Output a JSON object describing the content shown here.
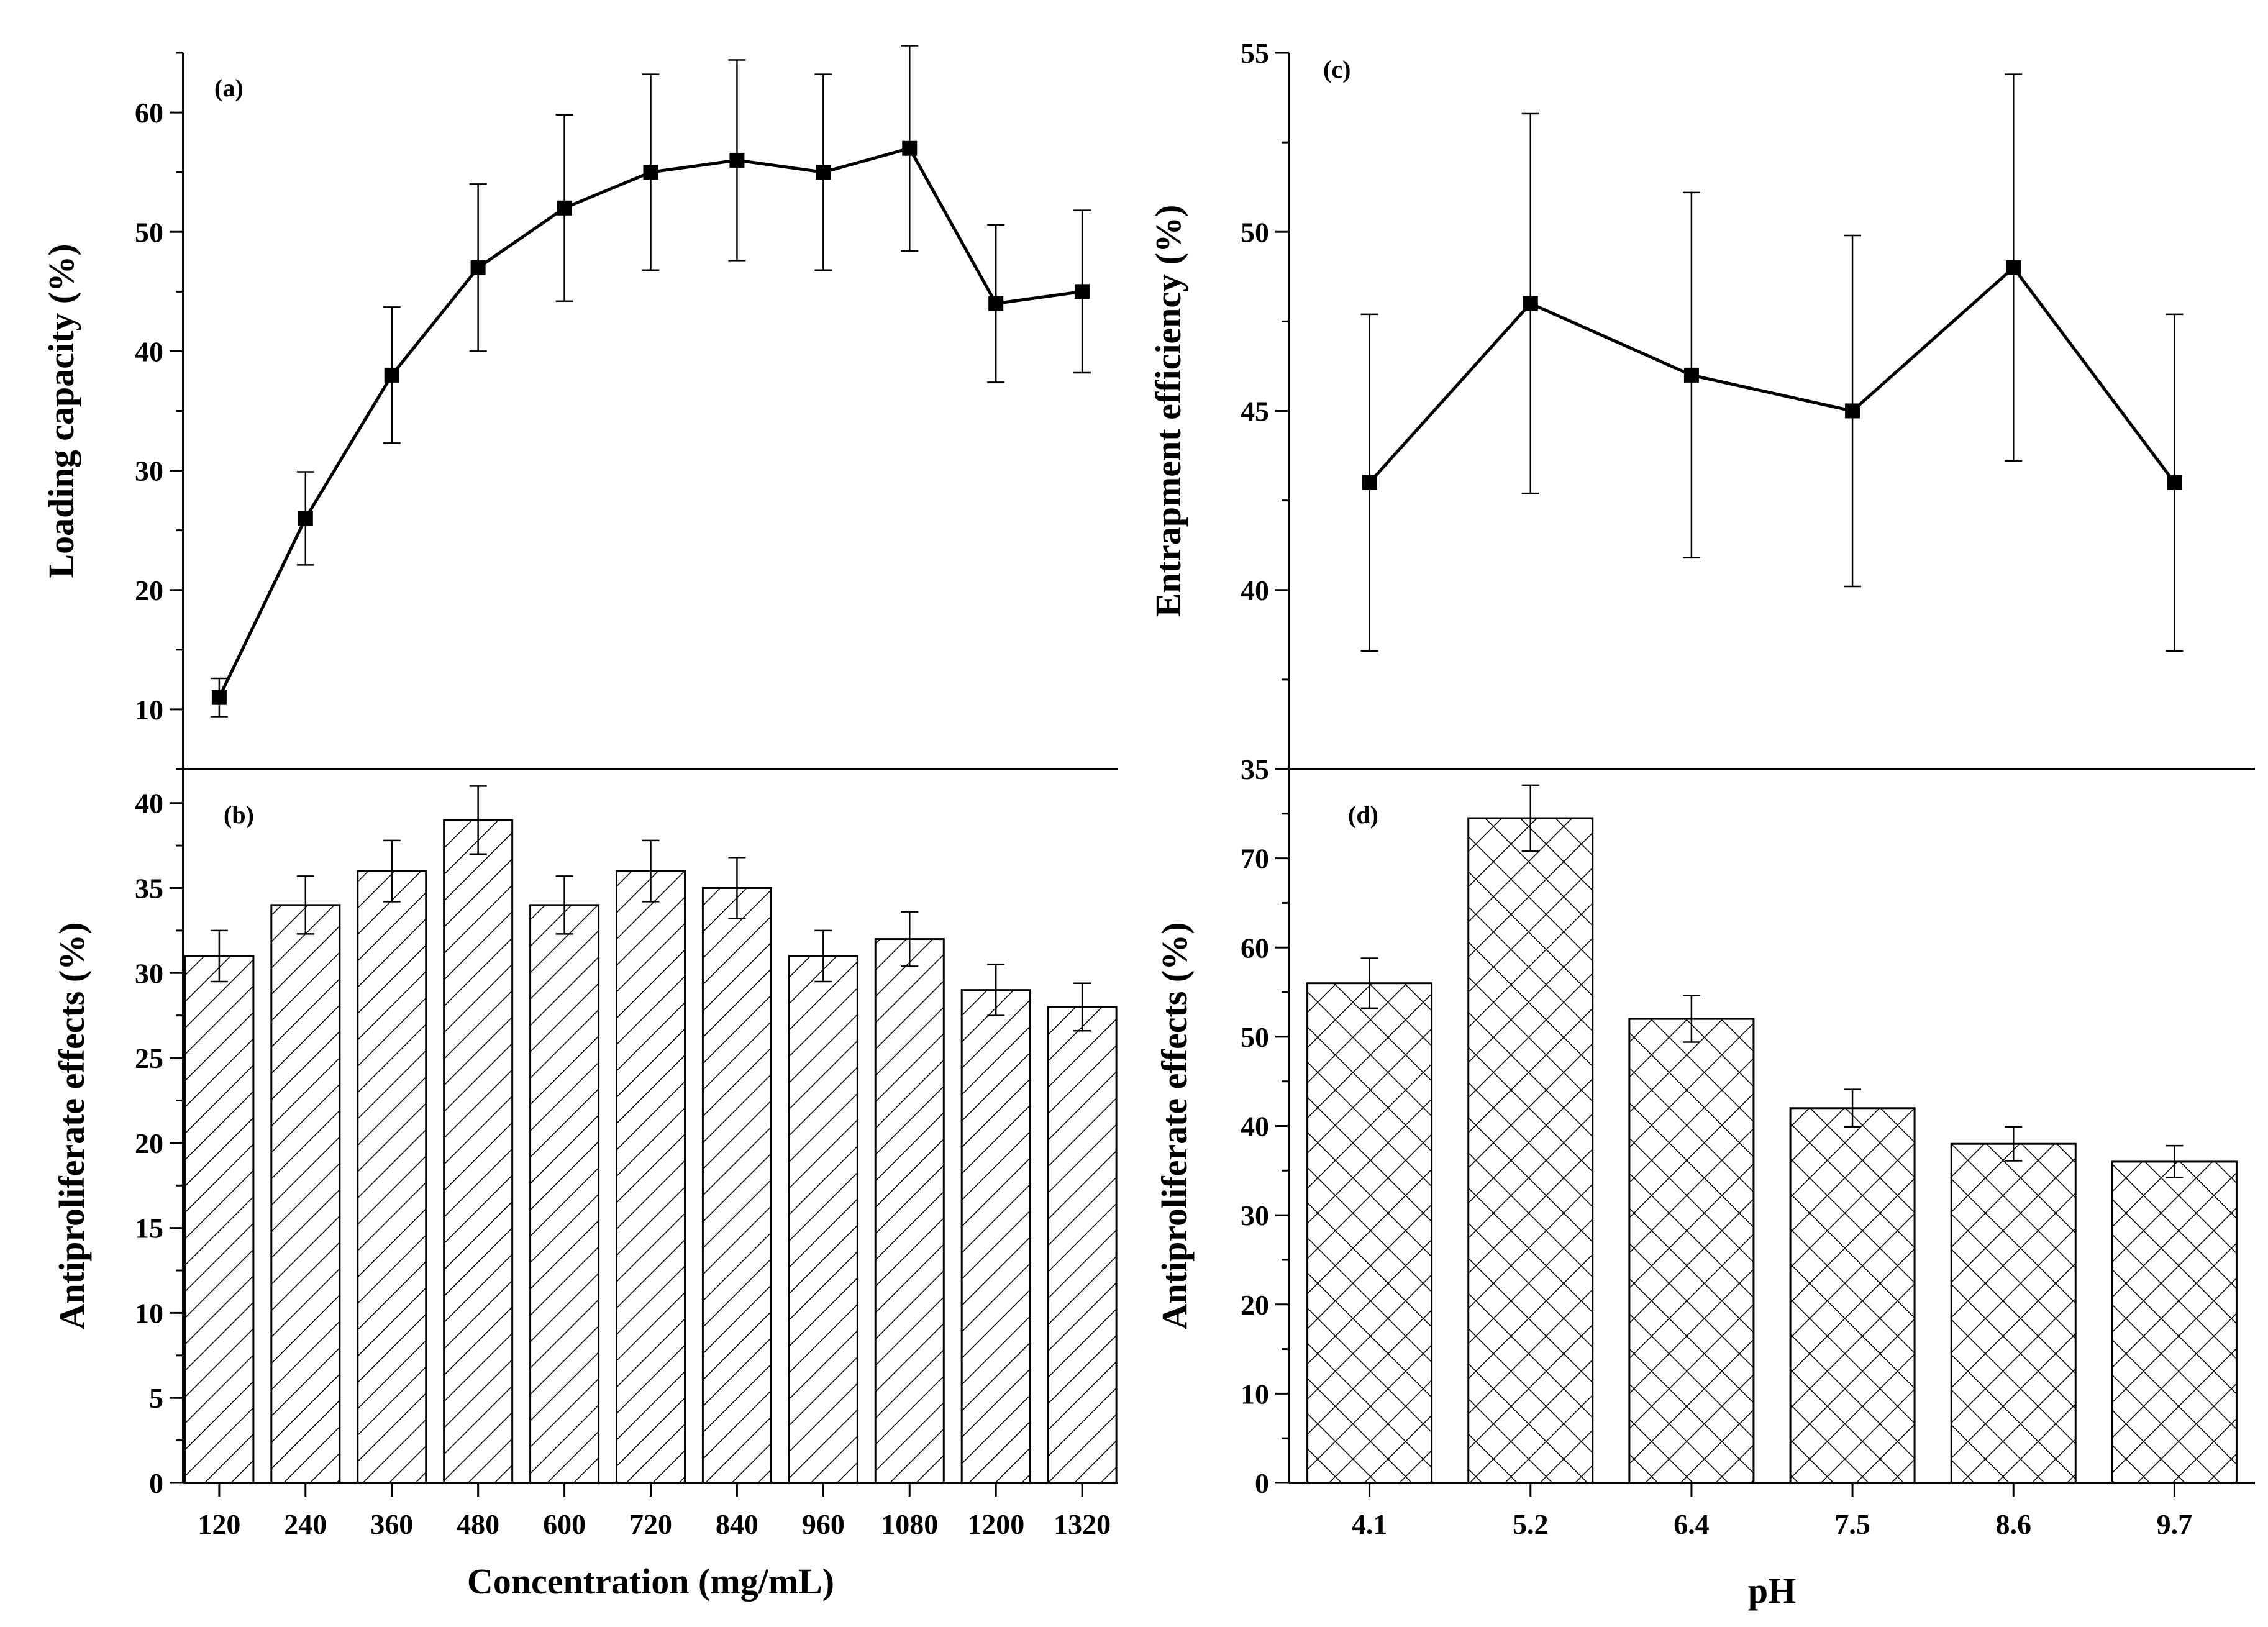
{
  "chart_data": [
    {
      "id": "a",
      "panel_label": "(a)",
      "type": "line",
      "title": "",
      "xlabel": "",
      "ylabel": "Loading capacity (%)",
      "ylim": [
        5,
        65
      ],
      "yticks": [
        10,
        20,
        30,
        40,
        50,
        60
      ],
      "x_positions": [
        120,
        240,
        360,
        480,
        600,
        720,
        840,
        960,
        1080,
        1200,
        1320
      ],
      "values": [
        11,
        26,
        38,
        47,
        52,
        55,
        56,
        55,
        57,
        44,
        45
      ],
      "errors": [
        1.6,
        3.9,
        5.7,
        7.0,
        7.8,
        8.2,
        8.4,
        8.2,
        8.6,
        6.6,
        6.8
      ],
      "marker": "square",
      "grid": false
    },
    {
      "id": "b",
      "panel_label": "(b)",
      "type": "bar",
      "title": "",
      "xlabel": "Concentration (mg/mL)",
      "ylabel": "Antiproliferate effects (%)",
      "ylim": [
        0,
        42
      ],
      "yticks": [
        0,
        5,
        10,
        15,
        20,
        25,
        30,
        35,
        40
      ],
      "categories": [
        "120",
        "240",
        "360",
        "480",
        "600",
        "720",
        "840",
        "960",
        "1080",
        "1200",
        "1320"
      ],
      "values": [
        31,
        34,
        36,
        39,
        34,
        36,
        35,
        31,
        32,
        29,
        28
      ],
      "errors": [
        1.5,
        1.7,
        1.8,
        2.0,
        1.7,
        1.8,
        1.8,
        1.5,
        1.6,
        1.5,
        1.4
      ],
      "pattern": "diagonal",
      "grid": false
    },
    {
      "id": "c",
      "panel_label": "(c)",
      "type": "line",
      "title": "",
      "xlabel": "",
      "ylabel": "Entrapment efficiency (%)",
      "ylim": [
        35,
        55
      ],
      "yticks": [
        35,
        40,
        45,
        50,
        55
      ],
      "x_positions": [
        "4.1",
        "5.2",
        "6.4",
        "7.5",
        "8.6",
        "9.7"
      ],
      "values": [
        43,
        48,
        46,
        45,
        49,
        43
      ],
      "errors": [
        4.7,
        5.3,
        5.1,
        4.9,
        5.4,
        4.7
      ],
      "marker": "square",
      "grid": false
    },
    {
      "id": "d",
      "panel_label": "(d)",
      "type": "bar",
      "title": "",
      "xlabel": "pH",
      "ylabel": "Antiproliferate effects (%)",
      "ylim": [
        0,
        80
      ],
      "yticks": [
        0,
        10,
        20,
        30,
        40,
        50,
        60,
        70
      ],
      "categories": [
        "4.1",
        "5.2",
        "6.4",
        "7.5",
        "8.6",
        "9.7"
      ],
      "values": [
        56,
        74.5,
        52,
        42,
        38,
        36
      ],
      "errors": [
        2.8,
        3.7,
        2.6,
        2.1,
        1.9,
        1.8
      ],
      "pattern": "crosshatch",
      "grid": false
    }
  ]
}
